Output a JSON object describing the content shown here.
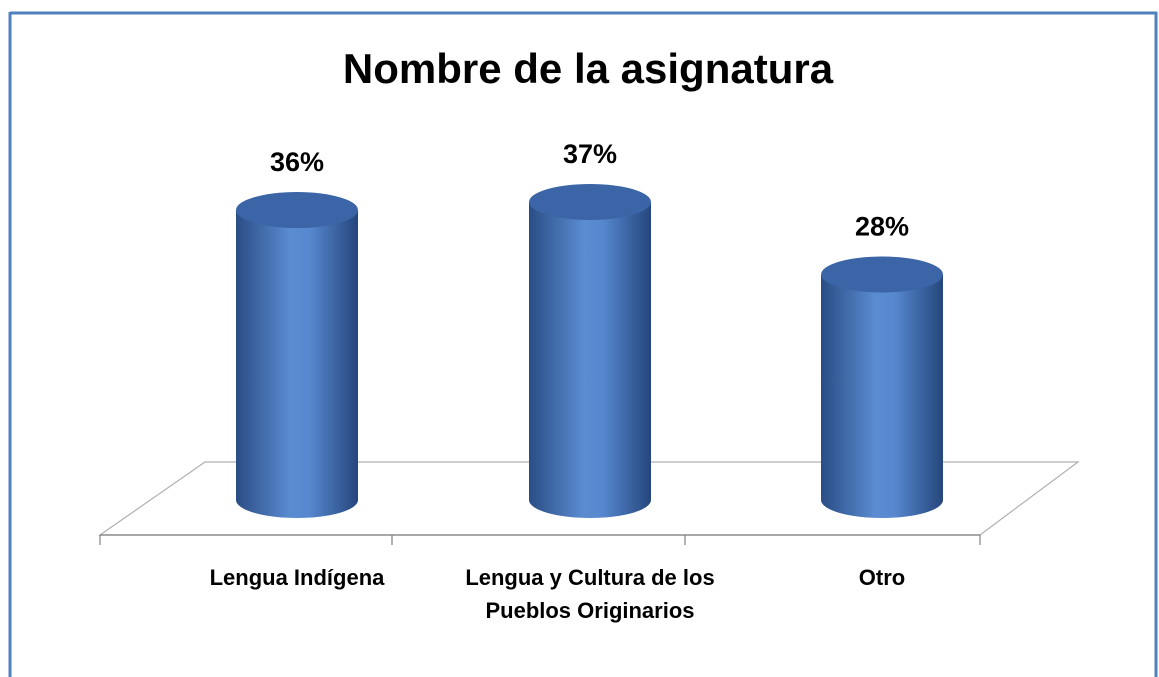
{
  "chart_data": {
    "type": "bar3d-cylinder",
    "title": "Nombre de la asignatura",
    "categories": [
      "Lengua Indígena",
      "Lengua y Cultura de los Pueblos Originarios",
      "Otro"
    ],
    "values": [
      36,
      37,
      28
    ],
    "value_labels": [
      "36%",
      "37%",
      "28%"
    ],
    "color": "#4a78bf"
  }
}
